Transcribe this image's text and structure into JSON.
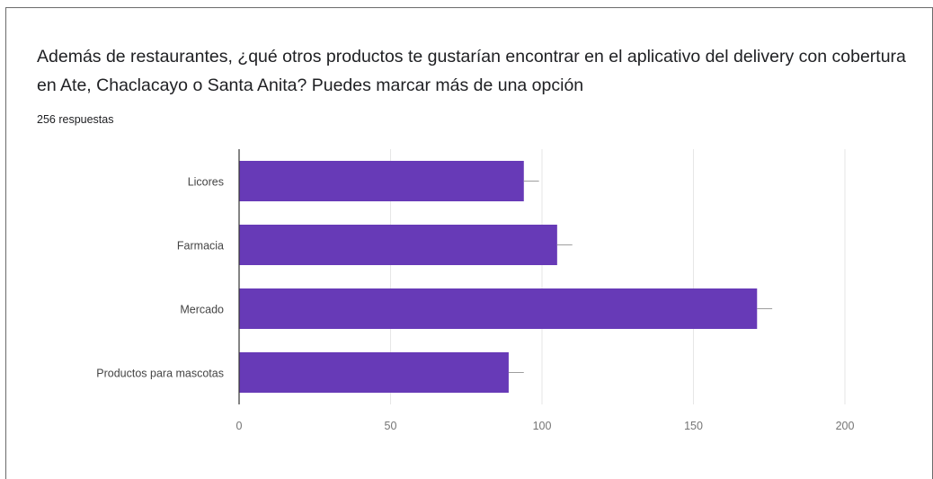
{
  "question": {
    "title": "Además de restaurantes, ¿qué otros productos te gustarían encontrar en el aplicativo del delivery con cobertura en Ate, Chaclacayo o Santa Anita? Puedes marcar más de una opción",
    "responses_count": "256 respuestas"
  },
  "colors": {
    "bar": "#673ab7",
    "grid": "#e6e6e6",
    "axis": "#333333",
    "tick_label": "#757575",
    "category_label": "#444444",
    "error_bar": "#9e9e9e"
  },
  "chart_data": {
    "type": "bar",
    "orientation": "horizontal",
    "title": "",
    "xlabel": "",
    "ylabel": "",
    "categories": [
      "Licores",
      "Farmacia",
      "Mercado",
      "Productos para mascotas"
    ],
    "values": [
      94,
      105,
      171,
      89
    ],
    "error_plus": [
      5,
      5,
      5,
      5
    ],
    "xlim": [
      0,
      200
    ],
    "xticks": [
      0,
      50,
      100,
      150,
      200
    ],
    "grid": true,
    "legend": "none"
  }
}
